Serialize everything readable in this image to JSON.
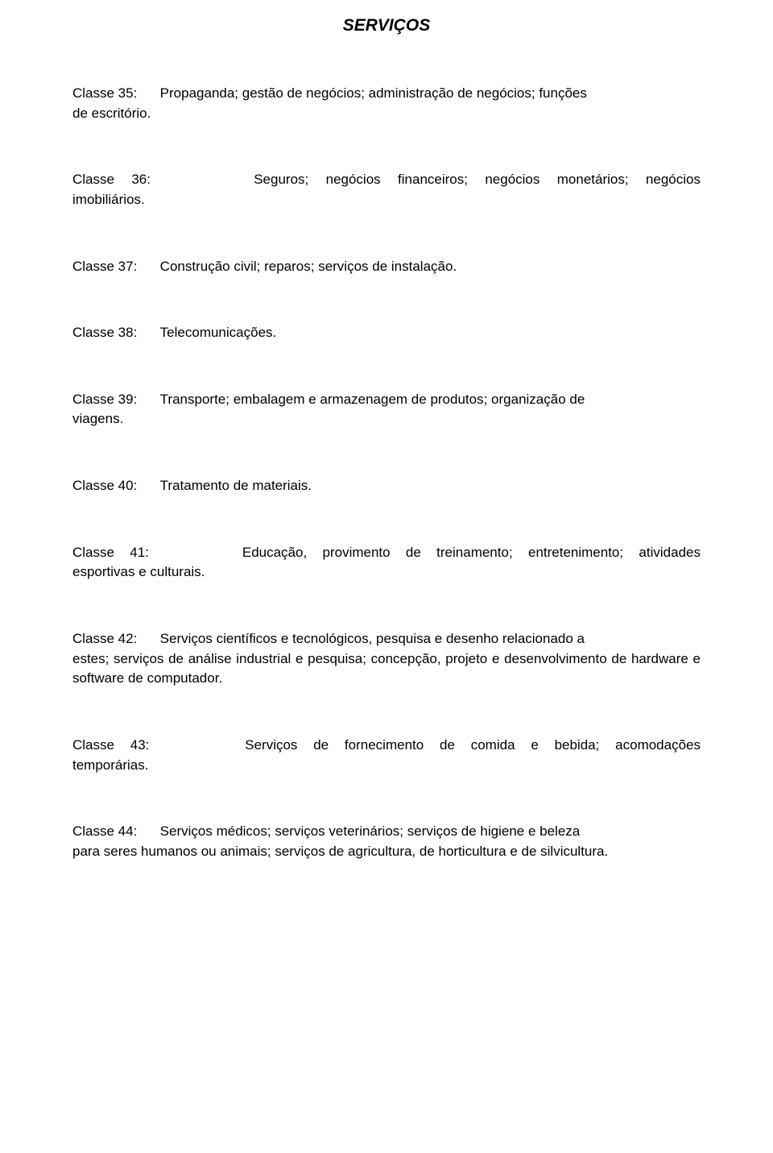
{
  "title": "SERVIÇOS",
  "entries": [
    {
      "label": "Classe 35:",
      "line1_rest": "Propaganda; gestão de negócios; administração de negócios; funções",
      "line2": "de escritório.",
      "line1_justify_between": false
    },
    {
      "label": "Classe 36:",
      "line1_rest": "Seguros; negócios financeiros; negócios monetários; negócios",
      "line2": "imobiliários.",
      "line1_justify_between": true
    },
    {
      "label": "Classe 37:",
      "line1_rest": "Construção civil; reparos; serviços de instalação.",
      "line2": "",
      "line1_justify_between": false
    },
    {
      "label": "Classe 38:",
      "line1_rest": "Telecomunicações.",
      "line2": "",
      "line1_justify_between": false
    },
    {
      "label": "Classe 39:",
      "line1_rest": "Transporte; embalagem e armazenagem de produtos; organização de",
      "line2": "viagens.",
      "line1_justify_between": false
    },
    {
      "label": "Classe 40:",
      "line1_rest": "Tratamento de materiais.",
      "line2": "",
      "line1_justify_between": false
    },
    {
      "label": "Classe 41:",
      "line1_rest": "Educação, provimento de treinamento; entretenimento; atividades",
      "line2": "esportivas e culturais.",
      "line1_justify_between": true
    },
    {
      "label": "Classe 42:",
      "line1_rest": "Serviços científicos e tecnológicos, pesquisa e desenho relacionado a",
      "line2": "estes; serviços de análise industrial e pesquisa; concepção, projeto e desenvolvimento de hardware e software de computador.",
      "line1_justify_between": false
    },
    {
      "label": "Classe 43:",
      "line1_rest": "Serviços de fornecimento de comida e bebida; acomodações",
      "line2": "temporárias.",
      "line1_justify_between": true
    },
    {
      "label": "Classe 44:",
      "line1_rest": "Serviços médicos; serviços veterinários; serviços de higiene e beleza",
      "line2": "para seres humanos ou animais; serviços de agricultura, de horticultura e de silvicultura.",
      "line1_justify_between": false
    }
  ]
}
